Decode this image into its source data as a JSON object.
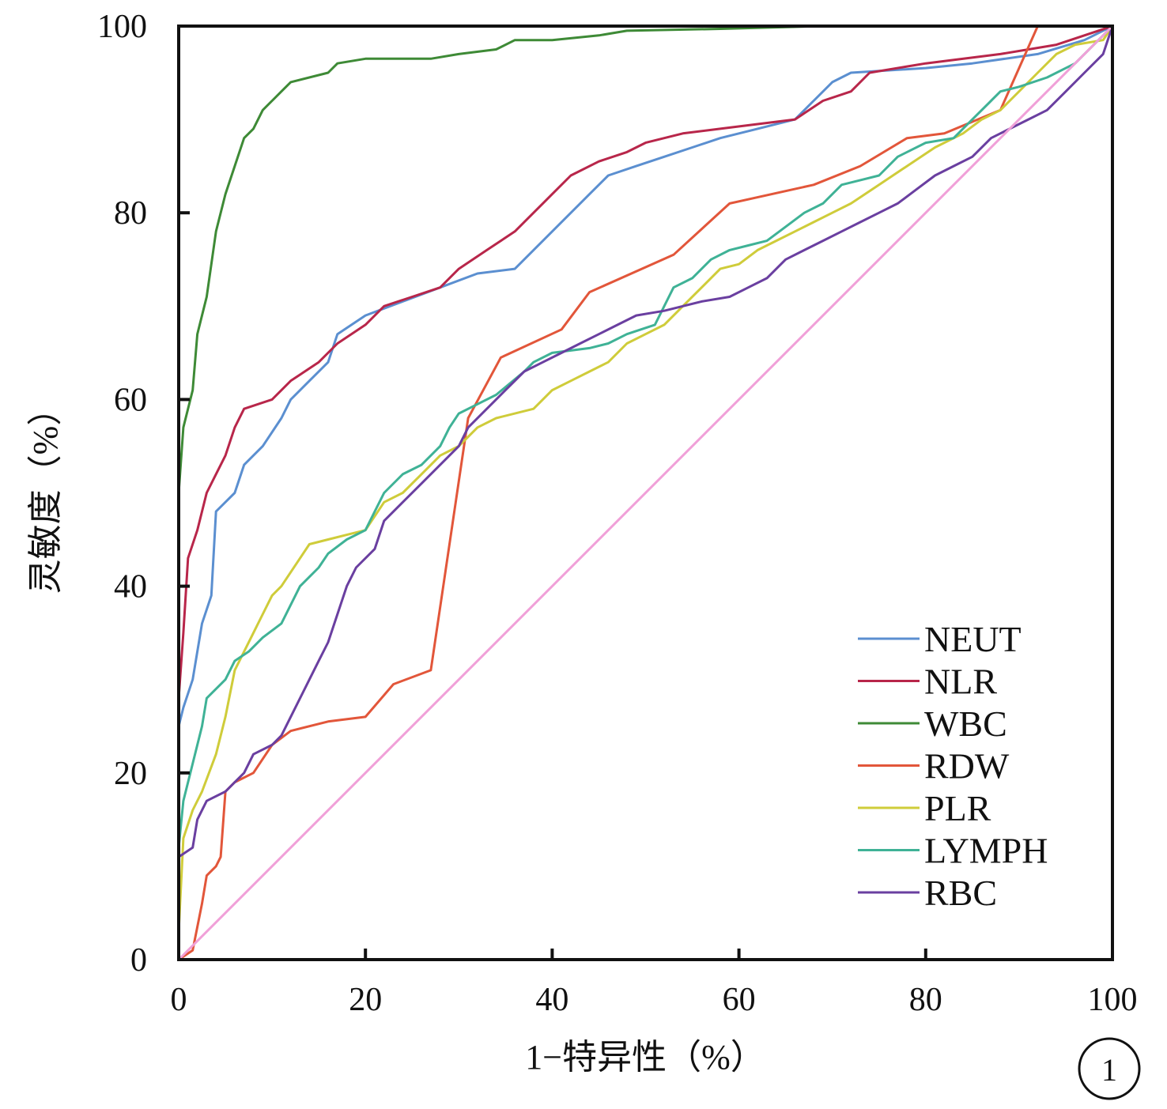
{
  "chart_data": {
    "type": "line",
    "title": "",
    "xlabel": "1−特异性（%）",
    "ylabel": "灵敏度（%）",
    "xlim": [
      0,
      100
    ],
    "ylim": [
      0,
      100
    ],
    "x_ticks": [
      "0",
      "20",
      "40",
      "60",
      "80",
      "100"
    ],
    "y_ticks": [
      "0",
      "20",
      "40",
      "60",
      "80",
      "100"
    ],
    "grid": false,
    "legend_position": "bottom-right",
    "panel_label": "1",
    "series": [
      {
        "name": "NEUT",
        "color": "#5b8fd0",
        "points": [
          [
            0,
            0
          ],
          [
            0,
            25
          ],
          [
            0.5,
            27
          ],
          [
            1.5,
            30
          ],
          [
            2.5,
            36
          ],
          [
            3.5,
            39
          ],
          [
            4,
            48
          ],
          [
            6,
            50
          ],
          [
            7,
            53
          ],
          [
            9,
            55
          ],
          [
            11,
            58
          ],
          [
            12,
            60
          ],
          [
            14,
            62
          ],
          [
            16,
            64
          ],
          [
            17,
            67
          ],
          [
            20,
            69
          ],
          [
            24,
            70.5
          ],
          [
            28,
            72
          ],
          [
            32,
            73.5
          ],
          [
            36,
            74
          ],
          [
            38,
            76
          ],
          [
            40,
            78
          ],
          [
            42,
            80
          ],
          [
            44,
            82
          ],
          [
            46,
            84
          ],
          [
            49,
            85
          ],
          [
            52,
            86
          ],
          [
            55,
            87
          ],
          [
            58,
            88
          ],
          [
            62,
            89
          ],
          [
            66,
            90
          ],
          [
            68,
            92
          ],
          [
            70,
            94
          ],
          [
            72,
            95
          ],
          [
            80,
            95.5
          ],
          [
            85,
            96
          ],
          [
            92,
            97
          ],
          [
            97,
            98.5
          ],
          [
            100,
            100
          ]
        ]
      },
      {
        "name": "NLR",
        "color": "#b8264a",
        "points": [
          [
            0,
            0
          ],
          [
            0,
            28
          ],
          [
            0.5,
            35
          ],
          [
            1,
            43
          ],
          [
            2,
            46
          ],
          [
            3,
            50
          ],
          [
            4,
            52
          ],
          [
            5,
            54
          ],
          [
            6,
            57
          ],
          [
            7,
            59
          ],
          [
            10,
            60
          ],
          [
            12,
            62
          ],
          [
            15,
            64
          ],
          [
            17,
            66
          ],
          [
            20,
            68
          ],
          [
            22,
            70
          ],
          [
            25,
            71
          ],
          [
            28,
            72
          ],
          [
            30,
            74
          ],
          [
            33,
            76
          ],
          [
            36,
            78
          ],
          [
            38,
            80
          ],
          [
            40,
            82
          ],
          [
            42,
            84
          ],
          [
            45,
            85.5
          ],
          [
            48,
            86.5
          ],
          [
            50,
            87.5
          ],
          [
            54,
            88.5
          ],
          [
            58,
            89
          ],
          [
            62,
            89.5
          ],
          [
            66,
            90
          ],
          [
            69,
            92
          ],
          [
            72,
            93
          ],
          [
            74,
            95
          ],
          [
            80,
            96
          ],
          [
            88,
            97
          ],
          [
            94,
            98
          ],
          [
            100,
            100
          ]
        ]
      },
      {
        "name": "WBC",
        "color": "#3e8a36",
        "points": [
          [
            0,
            50
          ],
          [
            0.5,
            57
          ],
          [
            1.5,
            61
          ],
          [
            2,
            67
          ],
          [
            3,
            71
          ],
          [
            4,
            78
          ],
          [
            5,
            82
          ],
          [
            6,
            85
          ],
          [
            7,
            88
          ],
          [
            8,
            89
          ],
          [
            9,
            91
          ],
          [
            10,
            92
          ],
          [
            11,
            93
          ],
          [
            12,
            94
          ],
          [
            16,
            95
          ],
          [
            17,
            96
          ],
          [
            20,
            96.5
          ],
          [
            27,
            96.5
          ],
          [
            30,
            97
          ],
          [
            34,
            97.5
          ],
          [
            36,
            98.5
          ],
          [
            40,
            98.5
          ],
          [
            45,
            99
          ],
          [
            48,
            99.5
          ],
          [
            58,
            99.7
          ],
          [
            69,
            100
          ]
        ]
      },
      {
        "name": "RDW",
        "color": "#e2563a",
        "points": [
          [
            0,
            0
          ],
          [
            1.5,
            1
          ],
          [
            2.5,
            6
          ],
          [
            3,
            9
          ],
          [
            4,
            10
          ],
          [
            4.5,
            11
          ],
          [
            5,
            18
          ],
          [
            6,
            19
          ],
          [
            8,
            20
          ],
          [
            10,
            23
          ],
          [
            12,
            24.5
          ],
          [
            16,
            25.5
          ],
          [
            20,
            26
          ],
          [
            23,
            29.5
          ],
          [
            27,
            31
          ],
          [
            31,
            58
          ],
          [
            34.5,
            64.5
          ],
          [
            41,
            67.5
          ],
          [
            44,
            71.5
          ],
          [
            53,
            75.5
          ],
          [
            59,
            81
          ],
          [
            68,
            83
          ],
          [
            73,
            85
          ],
          [
            78,
            88
          ],
          [
            82,
            88.5
          ],
          [
            88,
            91
          ],
          [
            92,
            100
          ],
          [
            100,
            100
          ]
        ]
      },
      {
        "name": "PLR",
        "color": "#cfcc3a",
        "points": [
          [
            0,
            3
          ],
          [
            0.5,
            13
          ],
          [
            1.5,
            16
          ],
          [
            2.5,
            18
          ],
          [
            4,
            22
          ],
          [
            5,
            26
          ],
          [
            6,
            31
          ],
          [
            7,
            33
          ],
          [
            8,
            35
          ],
          [
            9,
            37
          ],
          [
            10,
            39
          ],
          [
            11,
            40
          ],
          [
            13,
            43
          ],
          [
            14,
            44.5
          ],
          [
            16,
            45
          ],
          [
            18,
            45.5
          ],
          [
            20,
            46
          ],
          [
            22,
            49
          ],
          [
            24,
            50
          ],
          [
            26,
            52
          ],
          [
            28,
            54
          ],
          [
            30,
            55
          ],
          [
            32,
            57
          ],
          [
            34,
            58
          ],
          [
            38,
            59
          ],
          [
            40,
            61
          ],
          [
            42,
            62
          ],
          [
            44,
            63
          ],
          [
            46,
            64
          ],
          [
            48,
            66
          ],
          [
            50,
            67
          ],
          [
            52,
            68
          ],
          [
            54,
            70
          ],
          [
            56,
            72
          ],
          [
            58,
            74
          ],
          [
            60,
            74.5
          ],
          [
            62,
            76
          ],
          [
            64,
            77
          ],
          [
            66,
            78
          ],
          [
            68,
            79
          ],
          [
            70,
            80
          ],
          [
            72,
            81
          ],
          [
            75,
            83
          ],
          [
            78,
            85
          ],
          [
            81,
            87
          ],
          [
            84,
            88.5
          ],
          [
            86,
            90
          ],
          [
            88,
            91
          ],
          [
            90,
            93
          ],
          [
            92,
            95
          ],
          [
            94,
            97
          ],
          [
            96,
            98
          ],
          [
            99,
            98.5
          ],
          [
            100,
            100
          ]
        ]
      },
      {
        "name": "LYMPH",
        "color": "#3fb296",
        "points": [
          [
            0,
            12
          ],
          [
            0.5,
            17
          ],
          [
            1.5,
            21
          ],
          [
            2.5,
            25
          ],
          [
            3,
            28
          ],
          [
            5,
            30
          ],
          [
            6,
            32
          ],
          [
            7.5,
            33
          ],
          [
            9,
            34.5
          ],
          [
            11,
            36
          ],
          [
            12,
            38
          ],
          [
            13,
            40
          ],
          [
            14,
            41
          ],
          [
            15,
            42
          ],
          [
            16,
            43.5
          ],
          [
            18,
            45
          ],
          [
            20,
            46
          ],
          [
            21,
            48
          ],
          [
            22,
            50
          ],
          [
            24,
            52
          ],
          [
            26,
            53
          ],
          [
            28,
            55
          ],
          [
            29,
            57
          ],
          [
            30,
            58.5
          ],
          [
            32,
            59.5
          ],
          [
            34,
            60.5
          ],
          [
            37,
            63
          ],
          [
            38,
            64
          ],
          [
            40,
            65
          ],
          [
            44,
            65.5
          ],
          [
            46,
            66
          ],
          [
            48,
            67
          ],
          [
            51,
            68
          ],
          [
            52,
            70
          ],
          [
            53,
            72
          ],
          [
            55,
            73
          ],
          [
            57,
            75
          ],
          [
            59,
            76
          ],
          [
            61,
            76.5
          ],
          [
            63,
            77
          ],
          [
            65,
            78.5
          ],
          [
            67,
            80
          ],
          [
            69,
            81
          ],
          [
            71,
            83
          ],
          [
            73,
            83.5
          ],
          [
            75,
            84
          ],
          [
            77,
            86
          ],
          [
            80,
            87.5
          ],
          [
            83,
            88
          ],
          [
            85,
            90
          ],
          [
            87,
            92
          ],
          [
            88,
            93
          ],
          [
            90,
            93.5
          ],
          [
            93,
            94.5
          ],
          [
            96,
            96
          ],
          [
            100,
            100
          ]
        ]
      },
      {
        "name": "RBC",
        "color": "#6a3fa0",
        "points": [
          [
            0,
            11
          ],
          [
            1.5,
            12
          ],
          [
            2,
            15
          ],
          [
            3,
            17
          ],
          [
            5,
            18
          ],
          [
            6,
            19
          ],
          [
            7,
            20
          ],
          [
            8,
            22
          ],
          [
            10,
            23
          ],
          [
            11,
            24
          ],
          [
            12,
            26
          ],
          [
            13,
            28
          ],
          [
            14,
            30
          ],
          [
            15,
            32
          ],
          [
            16,
            34
          ],
          [
            17,
            37
          ],
          [
            18,
            40
          ],
          [
            19,
            42
          ],
          [
            21,
            44
          ],
          [
            22,
            47
          ],
          [
            24,
            49
          ],
          [
            26,
            51
          ],
          [
            28,
            53
          ],
          [
            30,
            55
          ],
          [
            31,
            57
          ],
          [
            33,
            59
          ],
          [
            35,
            61
          ],
          [
            37,
            63
          ],
          [
            39,
            64
          ],
          [
            41,
            65
          ],
          [
            43,
            66
          ],
          [
            45,
            67
          ],
          [
            47,
            68
          ],
          [
            49,
            69
          ],
          [
            52,
            69.5
          ],
          [
            54,
            70
          ],
          [
            56,
            70.5
          ],
          [
            59,
            71
          ],
          [
            61,
            72
          ],
          [
            63,
            73
          ],
          [
            65,
            75
          ],
          [
            67,
            76
          ],
          [
            69,
            77
          ],
          [
            71,
            78
          ],
          [
            73,
            79
          ],
          [
            75,
            80
          ],
          [
            77,
            81
          ],
          [
            79,
            82.5
          ],
          [
            81,
            84
          ],
          [
            83,
            85
          ],
          [
            85,
            86
          ],
          [
            87,
            88
          ],
          [
            89,
            89
          ],
          [
            91,
            90
          ],
          [
            93,
            91
          ],
          [
            95,
            93
          ],
          [
            97,
            95
          ],
          [
            99,
            97
          ],
          [
            100,
            100
          ]
        ]
      },
      {
        "name": "",
        "color": "#f0a0d8",
        "points": [
          [
            0,
            0
          ],
          [
            100,
            100
          ]
        ]
      }
    ]
  }
}
